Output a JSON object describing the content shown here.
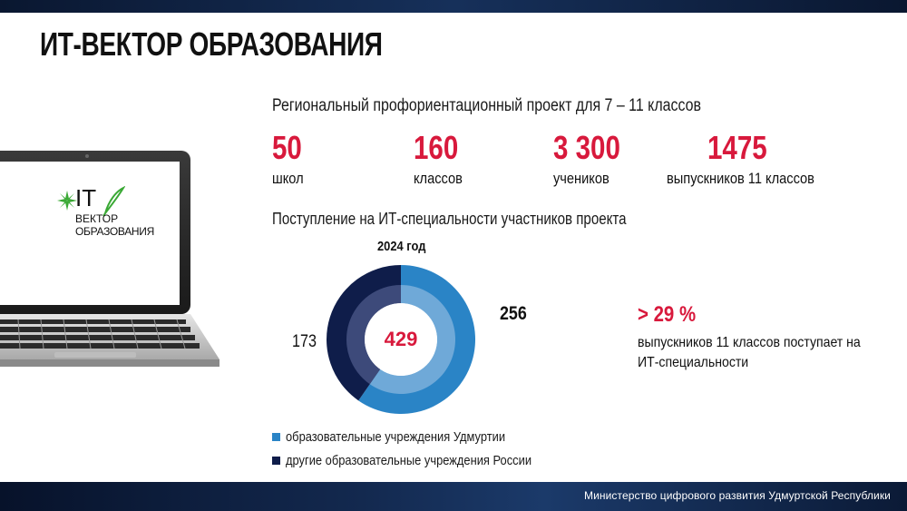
{
  "title": "ИТ-ВЕКТОР ОБРАЗОВАНИЯ",
  "subtitle": "Региональный профориентационный проект для 7 – 11 классов",
  "stats": [
    {
      "value": "50",
      "label": "школ"
    },
    {
      "value": "160",
      "label": "классов"
    },
    {
      "value": "3 300",
      "label": "учеников"
    },
    {
      "value": "1475",
      "label": "выпускников 11 классов"
    }
  ],
  "admissions": {
    "section_title": "Поступление на ИТ-специальности участников проекта",
    "year_label": "2024 год",
    "total": "429",
    "value_udmurtia": "256",
    "value_other": "173",
    "legend": [
      {
        "label": "образовательные учреждения Удмуртии",
        "color": "#2a84c6"
      },
      {
        "label": "другие образовательные учреждения России",
        "color": "#0f1d4a"
      }
    ]
  },
  "highlight": {
    "percent": "> 29 %",
    "text": "выпускников 11 классов поступает на ИТ-специальности"
  },
  "laptop_logo": {
    "line1": "IT",
    "line2": "ВЕКТОР",
    "line3": "ОБРАЗОВАНИЯ"
  },
  "footer": "Министерство цифрового развития Удмуртской Республики",
  "colors": {
    "accent": "#d8193c",
    "donut_blue": "#2a84c6",
    "donut_navy": "#0f1d4a",
    "logo_green": "#3aa935"
  }
}
